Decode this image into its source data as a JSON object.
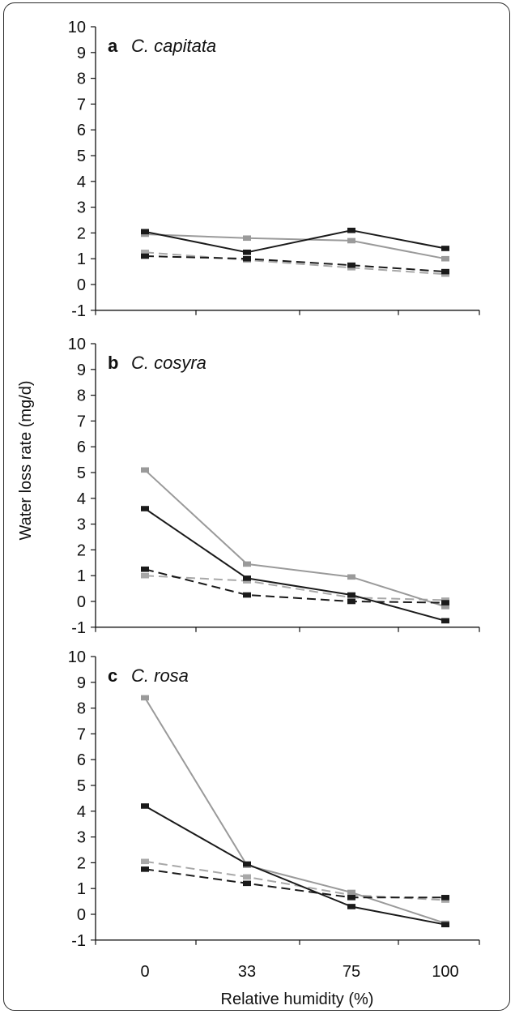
{
  "chart_data": {
    "type": "line",
    "xlabel": "Relative humidity (%)",
    "ylabel": "Water loss rate (mg/d)",
    "categories": [
      "0",
      "33",
      "75",
      "100"
    ],
    "ylim": [
      -1,
      10
    ],
    "yticks": [
      "-1",
      "0",
      "1",
      "2",
      "3",
      "4",
      "5",
      "6",
      "7",
      "8",
      "9",
      "10"
    ],
    "panels": [
      {
        "letter": "a",
        "species": "C. capitata",
        "series": [
          {
            "style": "solid-black",
            "values": [
              2.05,
              1.25,
              2.1,
              1.4
            ]
          },
          {
            "style": "solid-gray",
            "values": [
              1.95,
              1.8,
              1.7,
              1.0
            ]
          },
          {
            "style": "dashed-black",
            "values": [
              1.1,
              1.0,
              0.75,
              0.5
            ]
          },
          {
            "style": "dashed-gray",
            "values": [
              1.25,
              0.95,
              0.65,
              0.4
            ]
          }
        ]
      },
      {
        "letter": "b",
        "species": "C. cosyra",
        "series": [
          {
            "style": "solid-black",
            "values": [
              3.6,
              0.9,
              0.25,
              -0.75
            ]
          },
          {
            "style": "solid-gray",
            "values": [
              5.1,
              1.45,
              0.95,
              -0.2
            ]
          },
          {
            "style": "dashed-black",
            "values": [
              1.25,
              0.25,
              0.0,
              -0.05
            ]
          },
          {
            "style": "dashed-gray",
            "values": [
              1.0,
              0.8,
              0.15,
              0.05
            ]
          }
        ]
      },
      {
        "letter": "c",
        "species": "C. rosa",
        "series": [
          {
            "style": "solid-black",
            "values": [
              4.2,
              1.95,
              0.3,
              -0.4
            ]
          },
          {
            "style": "solid-gray",
            "values": [
              8.4,
              1.9,
              0.85,
              -0.35
            ]
          },
          {
            "style": "dashed-black",
            "values": [
              1.75,
              1.2,
              0.65,
              0.65
            ]
          },
          {
            "style": "dashed-gray",
            "values": [
              2.05,
              1.45,
              0.75,
              0.55
            ]
          }
        ]
      }
    ],
    "colors": {
      "solid-black": "#1a1a1a",
      "solid-gray": "#9a9a9a",
      "dashed-black": "#1a1a1a",
      "dashed-gray": "#a8a8a8",
      "axis": "#111111"
    }
  }
}
